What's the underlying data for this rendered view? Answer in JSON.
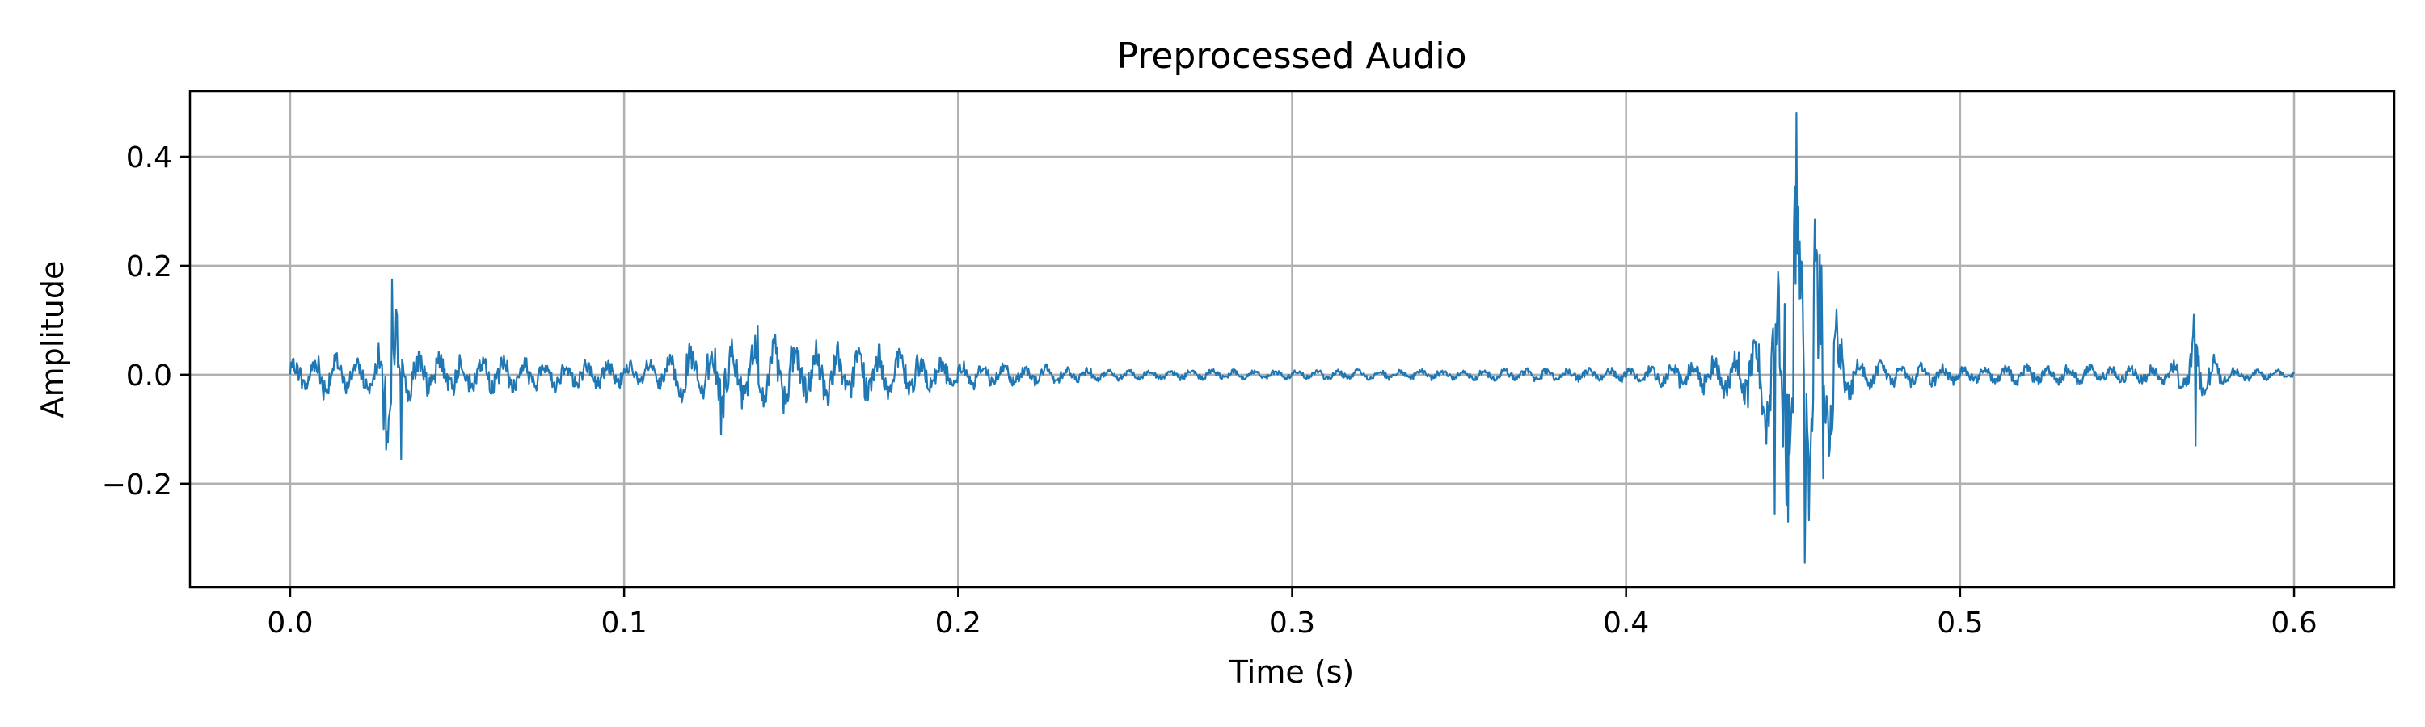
{
  "chart_data": {
    "type": "line",
    "title": "Preprocessed Audio",
    "xlabel": "Time (s)",
    "ylabel": "Amplitude",
    "xlim": [
      -0.03,
      0.63
    ],
    "ylim": [
      -0.39,
      0.52
    ],
    "grid": true,
    "legend": "none",
    "line_color": "#1f77b4",
    "grid_color": "#b0b0b0",
    "x_ticks": [
      0.0,
      0.1,
      0.2,
      0.3,
      0.4,
      0.5,
      0.6
    ],
    "x_tick_labels": [
      "0.0",
      "0.1",
      "0.2",
      "0.3",
      "0.4",
      "0.5",
      "0.6"
    ],
    "y_ticks": [
      -0.2,
      0.0,
      0.2,
      0.4
    ],
    "y_tick_labels": [
      "−0.2",
      "0.0",
      "0.2",
      "0.4"
    ],
    "series": [
      {
        "x_start": 0.0,
        "x_end": 0.6,
        "envelope": [
          [
            0.0,
            0.03
          ],
          [
            0.01,
            0.05
          ],
          [
            0.02,
            0.03
          ],
          [
            0.027,
            0.06
          ],
          [
            0.029,
            0.17
          ],
          [
            0.031,
            0.16
          ],
          [
            0.034,
            0.06
          ],
          [
            0.04,
            0.05
          ],
          [
            0.06,
            0.04
          ],
          [
            0.09,
            0.03
          ],
          [
            0.11,
            0.03
          ],
          [
            0.12,
            0.06
          ],
          [
            0.13,
            0.085
          ],
          [
            0.15,
            0.07
          ],
          [
            0.18,
            0.055
          ],
          [
            0.2,
            0.03
          ],
          [
            0.25,
            0.012
          ],
          [
            0.3,
            0.01
          ],
          [
            0.35,
            0.012
          ],
          [
            0.4,
            0.015
          ],
          [
            0.42,
            0.03
          ],
          [
            0.435,
            0.06
          ],
          [
            0.442,
            0.13
          ],
          [
            0.448,
            0.25
          ],
          [
            0.451,
            0.48
          ],
          [
            0.454,
            0.34
          ],
          [
            0.458,
            0.28
          ],
          [
            0.462,
            0.15
          ],
          [
            0.465,
            0.06
          ],
          [
            0.47,
            0.03
          ],
          [
            0.5,
            0.02
          ],
          [
            0.56,
            0.02
          ],
          [
            0.568,
            0.04
          ],
          [
            0.57,
            0.12
          ],
          [
            0.572,
            0.06
          ],
          [
            0.58,
            0.015
          ],
          [
            0.6,
            0.008
          ]
        ],
        "peaks": [
          [
            0.0305,
            0.175
          ],
          [
            0.0332,
            -0.155
          ],
          [
            0.028,
            -0.1
          ],
          [
            0.4445,
            -0.255
          ],
          [
            0.451,
            0.48
          ],
          [
            0.4535,
            -0.345
          ],
          [
            0.4565,
            0.285
          ],
          [
            0.459,
            -0.19
          ],
          [
            0.463,
            0.12
          ],
          [
            0.4475,
            0.13
          ],
          [
            0.57,
            0.11
          ],
          [
            0.5705,
            -0.13
          ],
          [
            0.129,
            -0.11
          ],
          [
            0.14,
            0.09
          ]
        ]
      }
    ]
  }
}
